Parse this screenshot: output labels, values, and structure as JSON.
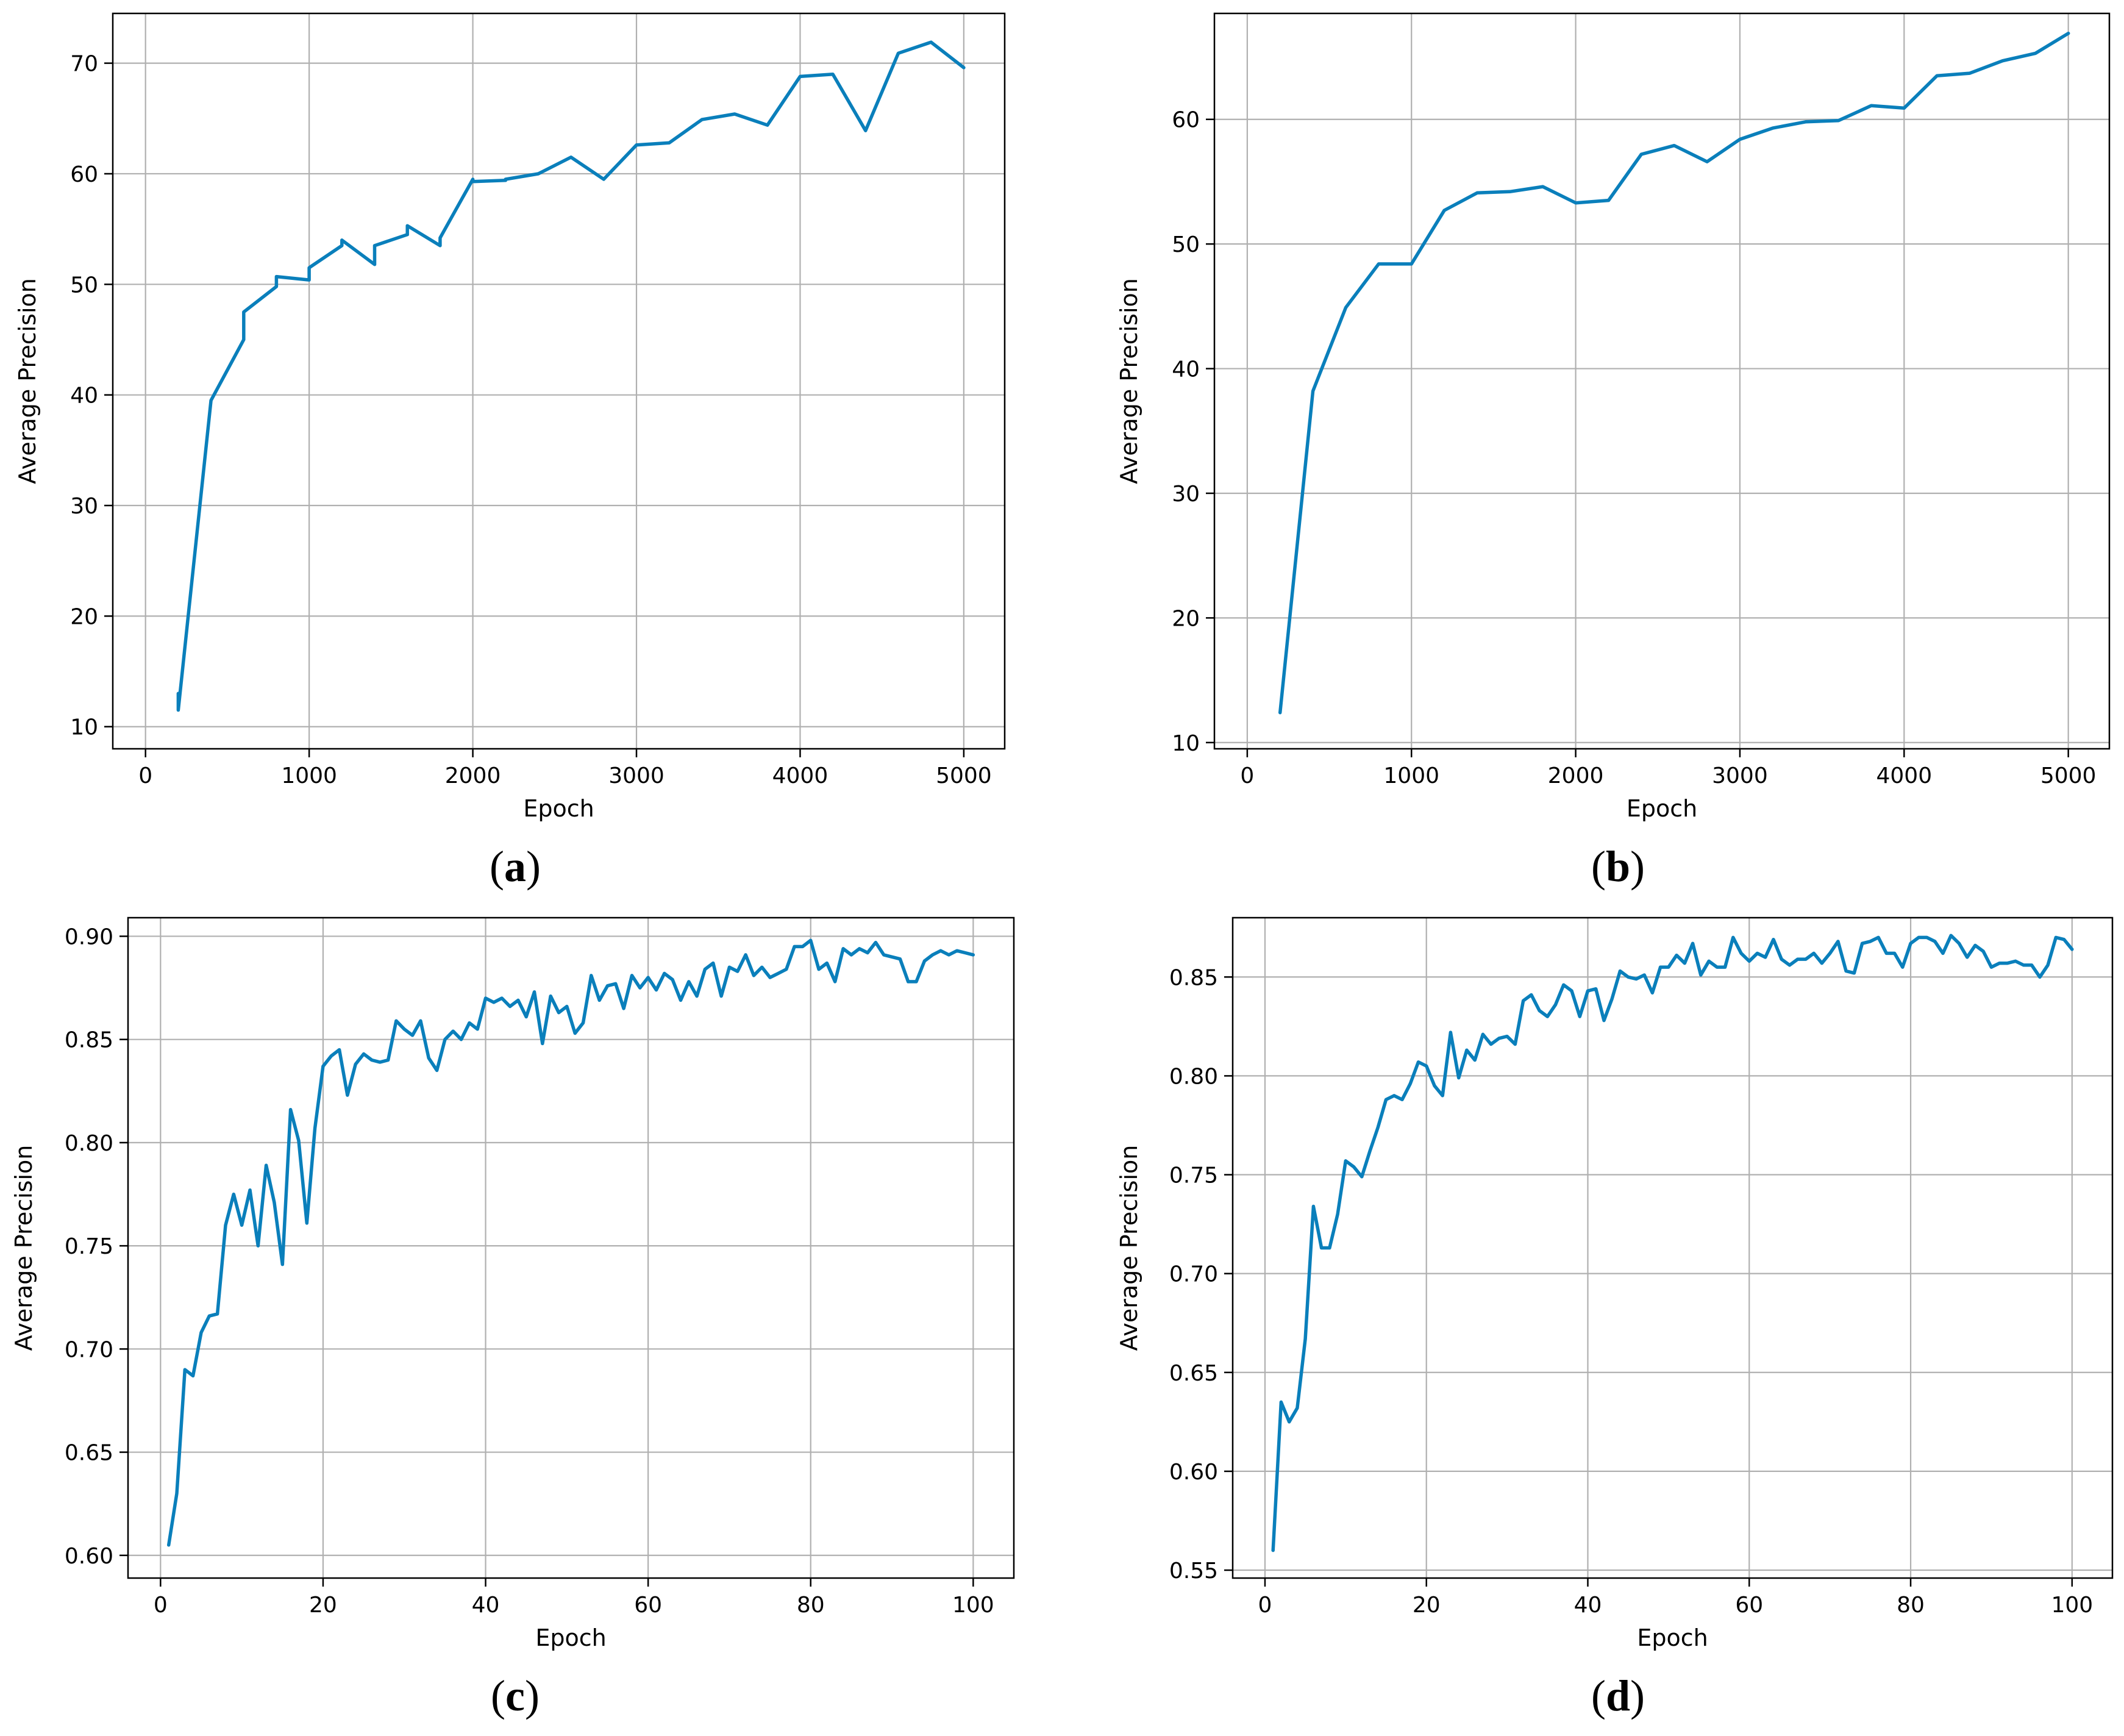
{
  "line_color": "#0a7fbb",
  "grid_color": "#b0b0b0",
  "captions": [
    {
      "open": "(",
      "letter": "a",
      "close": ")"
    },
    {
      "open": "(",
      "letter": "b",
      "close": ")"
    },
    {
      "open": "(",
      "letter": "c",
      "close": ")"
    },
    {
      "open": "(",
      "letter": "d",
      "close": ")"
    }
  ],
  "chart_data": [
    {
      "type": "line",
      "xlabel": "Epoch",
      "ylabel": "Average Precision",
      "xlim": [
        -200,
        5250
      ],
      "ylim": [
        8,
        74.5
      ],
      "xticks": [
        0,
        1000,
        2000,
        3000,
        4000,
        5000
      ],
      "xtick_labels": [
        "0",
        "1000",
        "2000",
        "3000",
        "4000",
        "5000"
      ],
      "yticks": [
        10,
        20,
        30,
        40,
        50,
        60,
        70
      ],
      "ytick_labels": [
        "10",
        "20",
        "30",
        "40",
        "50",
        "60",
        "70"
      ],
      "grid": true,
      "series": [
        {
          "x": [
            200,
            200,
            400,
            600,
            600,
            800,
            800,
            1000,
            1000,
            1200,
            1200,
            1400,
            1400,
            1600,
            1600,
            1800,
            1800,
            2000,
            2000,
            2200,
            2200,
            2400,
            2600,
            2800,
            3000,
            3200,
            3400,
            3600,
            3800,
            4000,
            4200,
            4400,
            4600,
            4800,
            5000
          ],
          "y": [
            13.0,
            11.5,
            39.5,
            45.0,
            47.5,
            49.8,
            50.7,
            50.4,
            51.5,
            53.5,
            54.0,
            51.8,
            53.5,
            54.5,
            55.3,
            53.5,
            54.2,
            59.5,
            59.3,
            59.4,
            59.5,
            60.0,
            61.5,
            59.5,
            62.6,
            62.8,
            64.9,
            65.4,
            64.4,
            68.8,
            69.0,
            63.9,
            70.9,
            71.9,
            69.6
          ]
        }
      ]
    },
    {
      "type": "line",
      "xlabel": "Epoch",
      "ylabel": "Average Precision",
      "xlim": [
        -200,
        5250
      ],
      "ylim": [
        9.5,
        68.5
      ],
      "xticks": [
        0,
        1000,
        2000,
        3000,
        4000,
        5000
      ],
      "xtick_labels": [
        "0",
        "1000",
        "2000",
        "3000",
        "4000",
        "5000"
      ],
      "yticks": [
        10,
        20,
        30,
        40,
        50,
        60
      ],
      "ytick_labels": [
        "10",
        "20",
        "30",
        "40",
        "50",
        "60"
      ],
      "grid": true,
      "series": [
        {
          "x": [
            200,
            400,
            600,
            800,
            1000,
            1200,
            1400,
            1600,
            1800,
            2000,
            2200,
            2400,
            2600,
            2800,
            3000,
            3200,
            3400,
            3600,
            3800,
            4000,
            4200,
            4400,
            4600,
            4800,
            5000
          ],
          "y": [
            12.4,
            38.2,
            44.9,
            48.4,
            48.4,
            52.7,
            54.1,
            54.2,
            54.6,
            53.3,
            53.5,
            57.2,
            57.9,
            56.6,
            58.4,
            59.3,
            59.8,
            59.9,
            61.1,
            60.9,
            63.5,
            63.7,
            64.7,
            65.3,
            66.9
          ]
        }
      ]
    },
    {
      "type": "line",
      "xlabel": "Epoch",
      "ylabel": "Average Precision",
      "xlim": [
        -4,
        105
      ],
      "ylim": [
        0.589,
        0.909
      ],
      "xticks": [
        0,
        20,
        40,
        60,
        80,
        100
      ],
      "xtick_labels": [
        "0",
        "20",
        "40",
        "60",
        "80",
        "100"
      ],
      "yticks": [
        0.6,
        0.65,
        0.7,
        0.75,
        0.8,
        0.85,
        0.9
      ],
      "ytick_labels": [
        "0.60",
        "0.65",
        "0.70",
        "0.75",
        "0.80",
        "0.85",
        "0.90"
      ],
      "grid": true,
      "series": [
        {
          "x": [
            1,
            2,
            3,
            4,
            5,
            6,
            7,
            8,
            9,
            10,
            11,
            12,
            13,
            14,
            15,
            16,
            17,
            18,
            19,
            20,
            21,
            22,
            23,
            24,
            25,
            26,
            27,
            28,
            29,
            30,
            31,
            32,
            33,
            34,
            35,
            36,
            37,
            38,
            39,
            40,
            41,
            42,
            43,
            44,
            45,
            46,
            47,
            48,
            49,
            50,
            51,
            52,
            53,
            54,
            55,
            56,
            57,
            58,
            59,
            60,
            61,
            62,
            63,
            64,
            65,
            66,
            67,
            68,
            69,
            70,
            71,
            72,
            73,
            74,
            75,
            76,
            77,
            78,
            79,
            80,
            81,
            82,
            83,
            84,
            85,
            86,
            87,
            88,
            89,
            90,
            91,
            92,
            93,
            94,
            95,
            96,
            97,
            98,
            99,
            100
          ],
          "y": [
            0.605,
            0.63,
            0.69,
            0.687,
            0.708,
            0.716,
            0.717,
            0.76,
            0.775,
            0.76,
            0.777,
            0.75,
            0.789,
            0.771,
            0.741,
            0.816,
            0.801,
            0.761,
            0.807,
            0.837,
            0.842,
            0.845,
            0.823,
            0.838,
            0.843,
            0.84,
            0.839,
            0.84,
            0.859,
            0.855,
            0.852,
            0.859,
            0.841,
            0.835,
            0.85,
            0.854,
            0.85,
            0.858,
            0.855,
            0.87,
            0.868,
            0.87,
            0.866,
            0.869,
            0.861,
            0.873,
            0.848,
            0.871,
            0.863,
            0.866,
            0.853,
            0.858,
            0.881,
            0.869,
            0.876,
            0.877,
            0.865,
            0.881,
            0.875,
            0.88,
            0.874,
            0.882,
            0.879,
            0.869,
            0.878,
            0.871,
            0.884,
            0.887,
            0.871,
            0.885,
            0.883,
            0.891,
            0.881,
            0.885,
            0.88,
            0.882,
            0.884,
            0.895,
            0.895,
            0.898,
            0.884,
            0.887,
            0.878,
            0.894,
            0.891,
            0.894,
            0.892,
            0.897,
            0.891,
            0.89,
            0.889,
            0.878,
            0.878,
            0.888,
            0.891,
            0.893,
            0.891,
            0.893,
            0.892,
            0.891
          ]
        }
      ]
    },
    {
      "type": "line",
      "xlabel": "Epoch",
      "ylabel": "Average Precision",
      "xlim": [
        -4,
        105
      ],
      "ylim": [
        0.546,
        0.88
      ],
      "xticks": [
        0,
        20,
        40,
        60,
        80,
        100
      ],
      "xtick_labels": [
        "0",
        "20",
        "40",
        "60",
        "80",
        "100"
      ],
      "yticks": [
        0.55,
        0.6,
        0.65,
        0.7,
        0.75,
        0.8,
        0.85
      ],
      "ytick_labels": [
        "0.55",
        "0.60",
        "0.65",
        "0.70",
        "0.75",
        "0.80",
        "0.85"
      ],
      "grid": true,
      "series": [
        {
          "x": [
            1,
            2,
            3,
            4,
            5,
            6,
            7,
            8,
            9,
            10,
            11,
            12,
            13,
            14,
            15,
            16,
            17,
            18,
            19,
            20,
            21,
            22,
            23,
            24,
            25,
            26,
            27,
            28,
            29,
            30,
            31,
            32,
            33,
            34,
            35,
            36,
            37,
            38,
            39,
            40,
            41,
            42,
            43,
            44,
            45,
            46,
            47,
            48,
            49,
            50,
            51,
            52,
            53,
            54,
            55,
            56,
            57,
            58,
            59,
            60,
            61,
            62,
            63,
            64,
            65,
            66,
            67,
            68,
            69,
            70,
            71,
            72,
            73,
            74,
            75,
            76,
            77,
            78,
            79,
            80,
            81,
            82,
            83,
            84,
            85,
            86,
            87,
            88,
            89,
            90,
            91,
            92,
            93,
            94,
            95,
            96,
            97,
            98,
            99,
            100
          ],
          "y": [
            0.56,
            0.635,
            0.625,
            0.632,
            0.667,
            0.734,
            0.713,
            0.713,
            0.73,
            0.757,
            0.754,
            0.749,
            0.762,
            0.774,
            0.788,
            0.79,
            0.788,
            0.796,
            0.807,
            0.805,
            0.795,
            0.79,
            0.822,
            0.799,
            0.813,
            0.808,
            0.821,
            0.816,
            0.819,
            0.82,
            0.816,
            0.838,
            0.841,
            0.833,
            0.83,
            0.836,
            0.846,
            0.843,
            0.83,
            0.843,
            0.844,
            0.828,
            0.839,
            0.853,
            0.85,
            0.849,
            0.851,
            0.842,
            0.855,
            0.855,
            0.861,
            0.857,
            0.867,
            0.851,
            0.858,
            0.855,
            0.855,
            0.87,
            0.862,
            0.858,
            0.862,
            0.86,
            0.869,
            0.859,
            0.856,
            0.859,
            0.859,
            0.862,
            0.857,
            0.862,
            0.868,
            0.853,
            0.852,
            0.867,
            0.868,
            0.87,
            0.862,
            0.862,
            0.855,
            0.867,
            0.87,
            0.87,
            0.868,
            0.862,
            0.871,
            0.867,
            0.86,
            0.866,
            0.863,
            0.855,
            0.857,
            0.857,
            0.858,
            0.856,
            0.856,
            0.85,
            0.856,
            0.87,
            0.869,
            0.864
          ]
        }
      ]
    }
  ]
}
